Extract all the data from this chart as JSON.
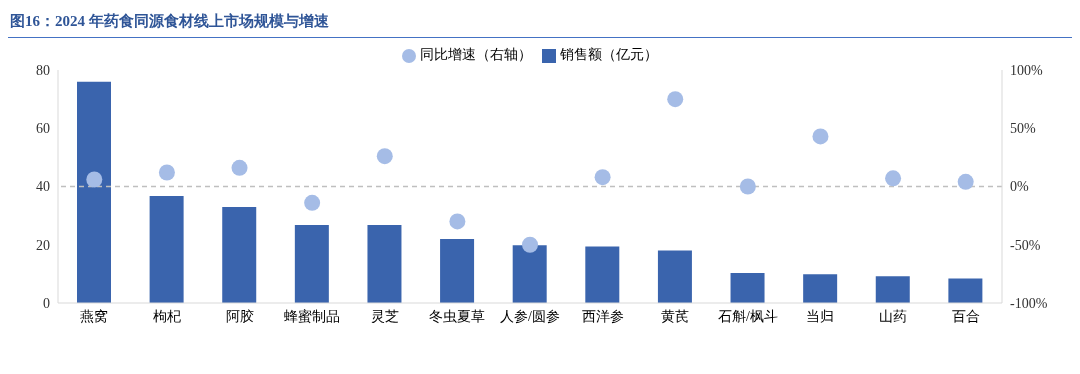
{
  "chart_data": {
    "type": "bar",
    "title": "图16：2024 年药食同源食材线上市场规模与增速",
    "categories": [
      "燕窝",
      "枸杞",
      "阿胶",
      "蜂蜜制品",
      "灵芝",
      "冬虫夏草",
      "人参/圆参",
      "西洋参",
      "黄芪",
      "石斛/枫斗",
      "当归",
      "山药",
      "百合"
    ],
    "series": [
      {
        "name": "销售额（亿元）",
        "color": "#3a64ad",
        "values": [
          76,
          36.7,
          33,
          26.8,
          26.8,
          22,
          19.8,
          19.4,
          18,
          10.3,
          9.9,
          9.2,
          8.4
        ]
      },
      {
        "name": "同比增速（右轴）",
        "type": "scatter",
        "axis": "y2",
        "color": "#a5bce6",
        "values": [
          6,
          12,
          16,
          -14,
          26,
          -30,
          -50,
          8,
          75,
          0,
          43,
          7,
          4
        ]
      }
    ],
    "ylim": [
      0,
      80
    ],
    "yticks": [
      0,
      20,
      40,
      60,
      80
    ],
    "y2lim": [
      -100,
      100
    ],
    "y2ticks": [
      {
        "value": -100,
        "label": "-100%"
      },
      {
        "value": -50,
        "label": "-50%"
      },
      {
        "value": 0,
        "label": "0%"
      },
      {
        "value": 50,
        "label": "50%"
      },
      {
        "value": 100,
        "label": "100%"
      }
    ],
    "ref_lines": [
      {
        "axis": "y2",
        "value": 0,
        "color": "#bfbfbf",
        "line_style": "dashed"
      }
    ],
    "legend": "top",
    "grid": false,
    "marker": "circle"
  }
}
